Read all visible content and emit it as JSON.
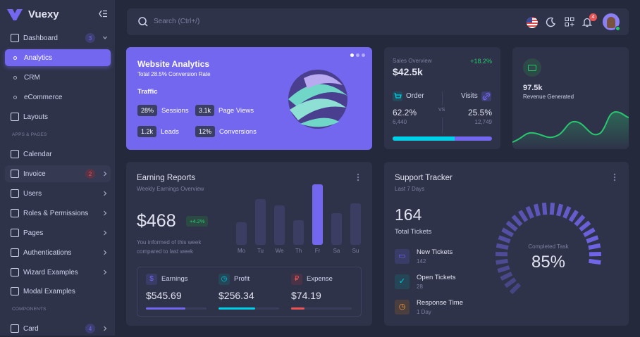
{
  "sidebar": {
    "brand": "Vuexy",
    "items": [
      {
        "label": "Dashboard",
        "badge": "3"
      },
      {
        "label": "Analytics"
      },
      {
        "label": "CRM"
      },
      {
        "label": "eCommerce"
      },
      {
        "label": "Layouts"
      },
      {
        "label": "Calendar"
      },
      {
        "label": "Invoice",
        "badge": "2"
      },
      {
        "label": "Users"
      },
      {
        "label": "Roles & Permissions"
      },
      {
        "label": "Pages"
      },
      {
        "label": "Authentications"
      },
      {
        "label": "Wizard Examples"
      },
      {
        "label": "Modal Examples"
      },
      {
        "label": "Card",
        "badge": "4"
      }
    ],
    "sections": [
      "APPS & PAGES",
      "COMPONENTS"
    ]
  },
  "header": {
    "search_placeholder": "Search (Ctrl+/)",
    "notifications": "4"
  },
  "website": {
    "title": "Website Analytics",
    "subtitle": "Total 28.5% Conversion Rate",
    "section": "Traffic",
    "stats": [
      {
        "v": "28%",
        "l": "Sessions"
      },
      {
        "v": "3.1k",
        "l": "Page Views"
      },
      {
        "v": "1.2k",
        "l": "Leads"
      },
      {
        "v": "12%",
        "l": "Conversions"
      }
    ]
  },
  "sales": {
    "label": "Sales Overview",
    "change": "+18.2%",
    "value": "$42.5k",
    "order": "Order",
    "visits": "Visits",
    "vs": "VS",
    "order_pct": "62.2%",
    "order_n": "6,440",
    "visits_pct": "25.5%",
    "visits_n": "12,749",
    "order_share": 62.2
  },
  "revenue": {
    "value": "97.5k",
    "label": "Revenue Generated"
  },
  "earning": {
    "title": "Earning Reports",
    "subtitle": "Weekly Earnings Overview",
    "value": "$468",
    "change": "+4.2%",
    "note1": "You informed of this week",
    "note2": "compared to last week",
    "days": [
      "Mo",
      "Tu",
      "We",
      "Th",
      "Fr",
      "Sa",
      "Su"
    ],
    "bars": [
      32,
      65,
      56,
      35,
      86,
      45,
      59
    ],
    "items": [
      {
        "label": "Earnings",
        "value": "$545.69",
        "pct": 65,
        "color": "#7367f0"
      },
      {
        "label": "Profit",
        "value": "$256.34",
        "pct": 60,
        "color": "#00cfe8"
      },
      {
        "label": "Expense",
        "value": "$74.19",
        "pct": 22,
        "color": "#ea5455"
      }
    ]
  },
  "support": {
    "title": "Support Tracker",
    "subtitle": "Last 7 Days",
    "total": "164",
    "total_label": "Total Tickets",
    "items": [
      {
        "label": "New Tickets",
        "value": "142"
      },
      {
        "label": "Open Tickets",
        "value": "28"
      },
      {
        "label": "Response Time",
        "value": "1 Day"
      }
    ],
    "gauge_label": "Completed Task",
    "gauge_value": "85%",
    "gauge_pct": 85
  },
  "colors": {
    "primary": "#7367f0",
    "success": "#28c76f",
    "info": "#00cfe8",
    "danger": "#ea5455",
    "warning": "#ff9f43"
  }
}
